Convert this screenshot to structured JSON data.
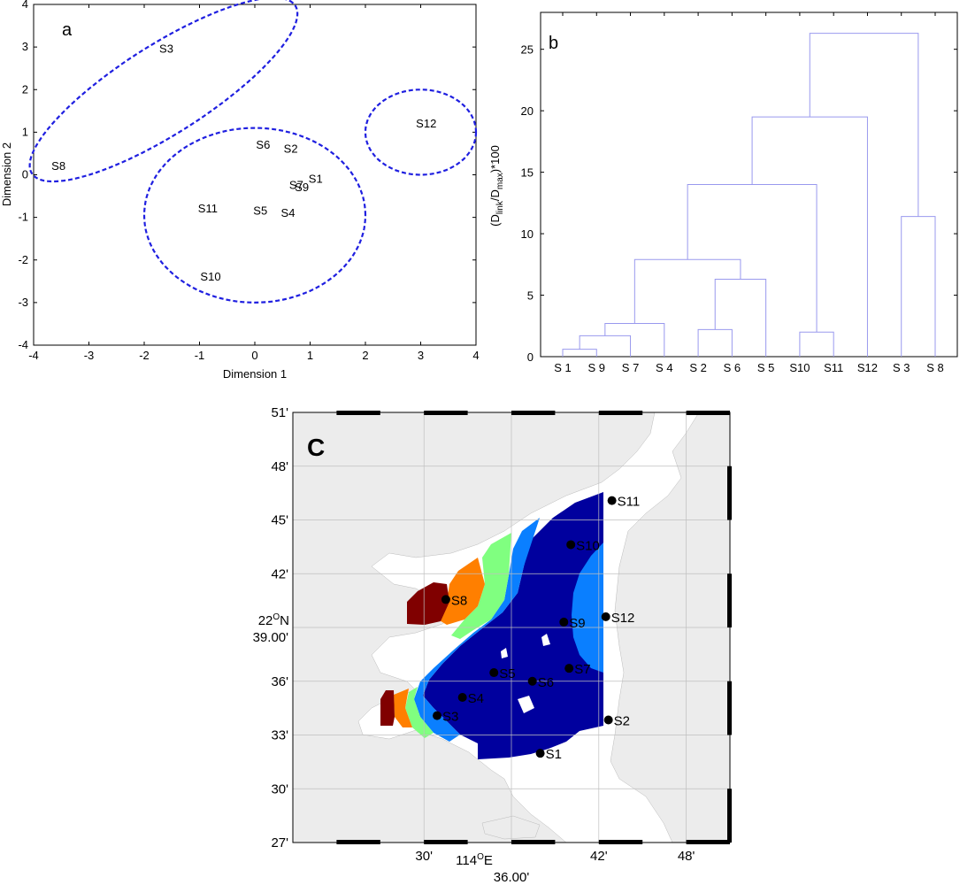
{
  "chart_data": [
    {
      "panel": "a",
      "type": "scatter",
      "xlabel": "Dimension 1",
      "ylabel": "Dimension 2",
      "xlim": [
        -4,
        4
      ],
      "ylim": [
        -4,
        4
      ],
      "xticks": [
        "-4",
        "-3",
        "-2",
        "-1",
        "0",
        "1",
        "2",
        "3",
        "4"
      ],
      "yticks": [
        "-4",
        "-3",
        "-2",
        "-1",
        "0",
        "1",
        "2",
        "3",
        "4"
      ],
      "points": [
        {
          "label": "S3",
          "x": -1.6,
          "y": 2.95
        },
        {
          "label": "S8",
          "x": -3.55,
          "y": 0.2
        },
        {
          "label": "S12",
          "x": 3.1,
          "y": 1.2
        },
        {
          "label": "S6",
          "x": 0.15,
          "y": 0.7
        },
        {
          "label": "S2",
          "x": 0.65,
          "y": 0.6
        },
        {
          "label": "S7",
          "x": 0.75,
          "y": -0.25
        },
        {
          "label": "S9",
          "x": 0.85,
          "y": -0.3
        },
        {
          "label": "S1",
          "x": 1.1,
          "y": -0.1
        },
        {
          "label": "S11",
          "x": -0.85,
          "y": -0.8
        },
        {
          "label": "S5",
          "x": 0.1,
          "y": -0.85
        },
        {
          "label": "S4",
          "x": 0.6,
          "y": -0.9
        },
        {
          "label": "S10",
          "x": -0.8,
          "y": -2.4
        }
      ],
      "ellipses": [
        {
          "cx": -1.65,
          "cy": 2.0,
          "rx": 3.1,
          "ry": 0.95,
          "angle_deg": 41
        },
        {
          "cx": 0.0,
          "cy": -0.95,
          "rx": 2.0,
          "ry": 2.05,
          "angle_deg": 0
        },
        {
          "cx": 3.0,
          "cy": 1.0,
          "rx": 1.0,
          "ry": 1.0,
          "angle_deg": 0
        }
      ]
    },
    {
      "panel": "b",
      "type": "dendrogram",
      "ylabel": "(D_link/D_max)*100",
      "ylim": [
        0,
        28
      ],
      "yticks": [
        "0",
        "5",
        "10",
        "15",
        "20",
        "25"
      ],
      "leaves": [
        "S 1",
        "S 9",
        "S 7",
        "S 4",
        "S 2",
        "S 6",
        "S 5",
        "S10",
        "S11",
        "S12",
        "S 3",
        "S 8"
      ],
      "merges": [
        {
          "a": "L0",
          "b": "L1",
          "h": 0.6
        },
        {
          "a": "M0",
          "b": "L2",
          "h": 1.7
        },
        {
          "a": "M1",
          "b": "L3",
          "h": 2.7
        },
        {
          "a": "L4",
          "b": "L5",
          "h": 2.2
        },
        {
          "a": "M3",
          "b": "L6",
          "h": 6.3
        },
        {
          "a": "M2",
          "b": "M4",
          "h": 7.9
        },
        {
          "a": "L7",
          "b": "L8",
          "h": 2.0
        },
        {
          "a": "M5",
          "b": "M6",
          "h": 14.0
        },
        {
          "a": "M7",
          "b": "L9",
          "h": 19.5
        },
        {
          "a": "L10",
          "b": "L11",
          "h": 11.4
        },
        {
          "a": "M8",
          "b": "M9",
          "h": 26.3
        }
      ]
    },
    {
      "panel": "c",
      "type": "map",
      "lat_ticks": [
        "51'",
        "48'",
        "45'",
        "42'",
        "39.00'",
        "36'",
        "33'",
        "30'",
        "27'"
      ],
      "lat_center_label": "22ON",
      "lon_ticks": [
        "30'",
        "36.00'",
        "42'",
        "48'"
      ],
      "lon_center_label": "114OE",
      "stations": [
        {
          "label": "S11",
          "lon": 114.715,
          "lat": 22.768
        },
        {
          "label": "S10",
          "lon": 114.668,
          "lat": 22.727
        },
        {
          "label": "S8",
          "lon": 114.525,
          "lat": 22.676
        },
        {
          "label": "S9",
          "lon": 114.66,
          "lat": 22.655
        },
        {
          "label": "S12",
          "lon": 114.708,
          "lat": 22.66
        },
        {
          "label": "S7",
          "lon": 114.666,
          "lat": 22.612
        },
        {
          "label": "S5",
          "lon": 114.58,
          "lat": 22.608
        },
        {
          "label": "S6",
          "lon": 114.624,
          "lat": 22.6
        },
        {
          "label": "S4",
          "lon": 114.544,
          "lat": 22.585
        },
        {
          "label": "S3",
          "lon": 114.515,
          "lat": 22.568
        },
        {
          "label": "S2",
          "lon": 114.711,
          "lat": 22.564
        },
        {
          "label": "S1",
          "lon": 114.633,
          "lat": 22.533
        }
      ]
    }
  ],
  "colors": {
    "ellipse": "#1f1fe0",
    "dendro": "#9999ee",
    "land": "#ececec",
    "zone_darkred": "#800000",
    "zone_orange": "#ff7f00",
    "zone_green": "#80ff80",
    "zone_lightblue": "#0a7fff",
    "zone_navy": "#00009e"
  },
  "text": {
    "panel_a": "a",
    "panel_b": "b",
    "panel_c": "C",
    "xlabel_a": "Dimension 1",
    "ylabel_a": "Dimension 2",
    "lat_deg": "22",
    "lat_sup": "O",
    "lat_hem": "N",
    "lon_deg": "114",
    "lon_sup": "O",
    "lon_hem": "E",
    "ylab_b_pre": "(D",
    "ylab_b_sub1": "link",
    "ylab_b_mid": "/D",
    "ylab_b_sub2": "max",
    "ylab_b_post": ")*100"
  }
}
